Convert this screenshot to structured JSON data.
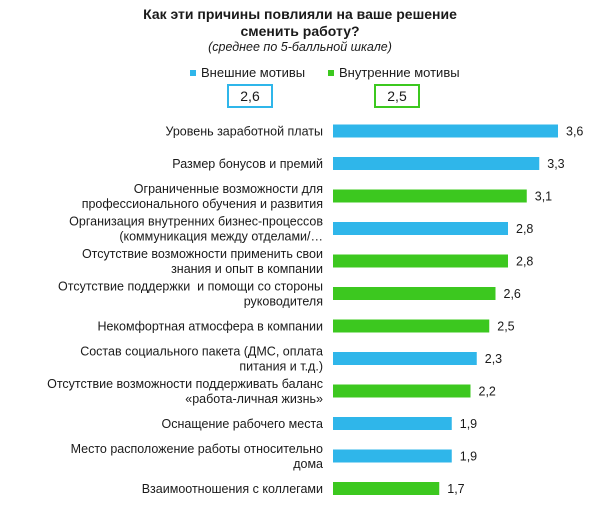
{
  "colors": {
    "external": "#2fb6ea",
    "internal": "#3cc81f"
  },
  "chart_data": {
    "type": "bar",
    "orientation": "horizontal",
    "title_line1": "Как эти причины повлияли на ваше решение",
    "title_line2": "сменить работу?",
    "subtitle": "(среднее по 5-балльной шкале)",
    "legend": [
      {
        "key": "external",
        "label": "Внешние мотивы",
        "average": "2,6"
      },
      {
        "key": "internal",
        "label": "Внутренние мотивы",
        "average": "2,5"
      }
    ],
    "xlim": [
      0,
      3.6
    ],
    "grid": false,
    "categories": [
      {
        "lines": [
          "Уровень заработной платы"
        ],
        "value": 3.6,
        "display": "3,6",
        "group": "external"
      },
      {
        "lines": [
          "Размер бонусов и премий"
        ],
        "value": 3.3,
        "display": "3,3",
        "group": "external"
      },
      {
        "lines": [
          "Ограниченные возможности для",
          "профессионального обучения и развития"
        ],
        "value": 3.1,
        "display": "3,1",
        "group": "internal"
      },
      {
        "lines": [
          "Организация внутренних бизнес-процессов",
          "(коммуникация между отделами/…"
        ],
        "value": 2.8,
        "display": "2,8",
        "group": "external"
      },
      {
        "lines": [
          "Отсутствие возможности применить свои",
          "знания и опыт в компании"
        ],
        "value": 2.8,
        "display": "2,8",
        "group": "internal"
      },
      {
        "lines": [
          "Отсутствие поддержки  и помощи со стороны",
          "руководителя"
        ],
        "value": 2.6,
        "display": "2,6",
        "group": "internal"
      },
      {
        "lines": [
          "Некомфортная атмосфера в компании"
        ],
        "value": 2.5,
        "display": "2,5",
        "group": "internal"
      },
      {
        "lines": [
          "Состав социального пакета (ДМС, оплата",
          "питания и т.д.)"
        ],
        "value": 2.3,
        "display": "2,3",
        "group": "external"
      },
      {
        "lines": [
          "Отсутствие возможности поддерживать баланс",
          "«работа-личная жизнь»"
        ],
        "value": 2.2,
        "display": "2,2",
        "group": "internal"
      },
      {
        "lines": [
          "Оснащение рабочего места"
        ],
        "value": 1.9,
        "display": "1,9",
        "group": "external"
      },
      {
        "lines": [
          "Место расположение работы относительно",
          "дома"
        ],
        "value": 1.9,
        "display": "1,9",
        "group": "external"
      },
      {
        "lines": [
          "Взаимоотношения с коллегами"
        ],
        "value": 1.7,
        "display": "1,7",
        "group": "internal"
      }
    ]
  }
}
